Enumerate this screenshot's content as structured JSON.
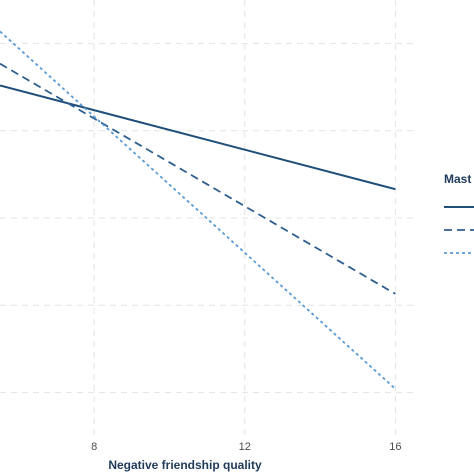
{
  "chart_data": {
    "type": "line",
    "x_axis": {
      "label": "Negative friendship quality",
      "ticks": [
        8,
        12,
        16
      ],
      "range": [
        5.5,
        16.6
      ]
    },
    "y_axis": {
      "gridlines": [
        0,
        1,
        2,
        3,
        4
      ],
      "range": [
        -0.5,
        4.5
      ]
    },
    "grid": true,
    "legend": {
      "title": "Mast",
      "placement": "right"
    },
    "series": [
      {
        "style": "solid",
        "color": "#1f4e79",
        "x": [
          5.5,
          16
        ],
        "y": [
          3.52,
          2.33
        ]
      },
      {
        "style": "dashed",
        "color": "#2e5f8e",
        "x": [
          5.5,
          16
        ],
        "y": [
          3.77,
          1.13
        ]
      },
      {
        "style": "dotted",
        "color": "#5b9bd5",
        "x": [
          5.5,
          16
        ],
        "y": [
          4.14,
          0.04
        ]
      }
    ]
  }
}
